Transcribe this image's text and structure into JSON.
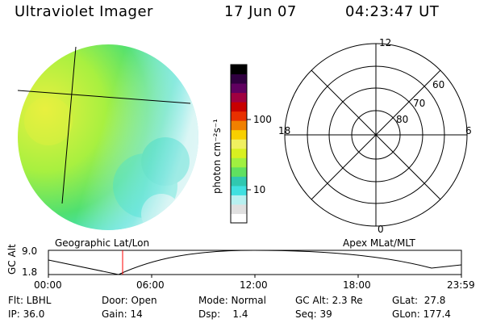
{
  "header": {
    "title": "Ultraviolet Imager",
    "date": "17 Jun 07",
    "time": "04:23:47 UT"
  },
  "colorbar": {
    "label": "photon cm⁻²s⁻¹",
    "ticks": [
      "100",
      "10"
    ],
    "colors": [
      "#ffffff",
      "#e0e0e0",
      "#b8f0f0",
      "#40e0e0",
      "#30c8b0",
      "#60e060",
      "#a0f040",
      "#d8f020",
      "#f0f060",
      "#f8d000",
      "#f08000",
      "#e83000",
      "#c80000",
      "#a00040",
      "#600060",
      "#300040",
      "#000000"
    ]
  },
  "polar": {
    "labels": {
      "top": "12",
      "bottom": "0",
      "left": "18",
      "right": "6",
      "r60": "60",
      "r70": "70",
      "r80": "80"
    }
  },
  "orbit": {
    "left_label": "Geographic Lat/Lon",
    "right_label": "Apex MLat/MLT",
    "yaxis": "GC Alt",
    "y_high": "9.0",
    "y_low": "1.8",
    "x_ticks": [
      "00:00",
      "06:00",
      "12:00",
      "18:00",
      "23:59"
    ],
    "marker_color": "#ff0000"
  },
  "info": {
    "filter": "Flt: LBHL",
    "ip": "IP: 36.0",
    "door": "Door: Open",
    "gain": "Gain: 14",
    "mode": "Mode: Normal",
    "dsp": "Dsp:    1.4",
    "gcalt": "GC Alt: 2.3 Re",
    "seq": "Seq: 39",
    "glat": "GLat:  27.8",
    "glon": "GLon: 177.4"
  }
}
